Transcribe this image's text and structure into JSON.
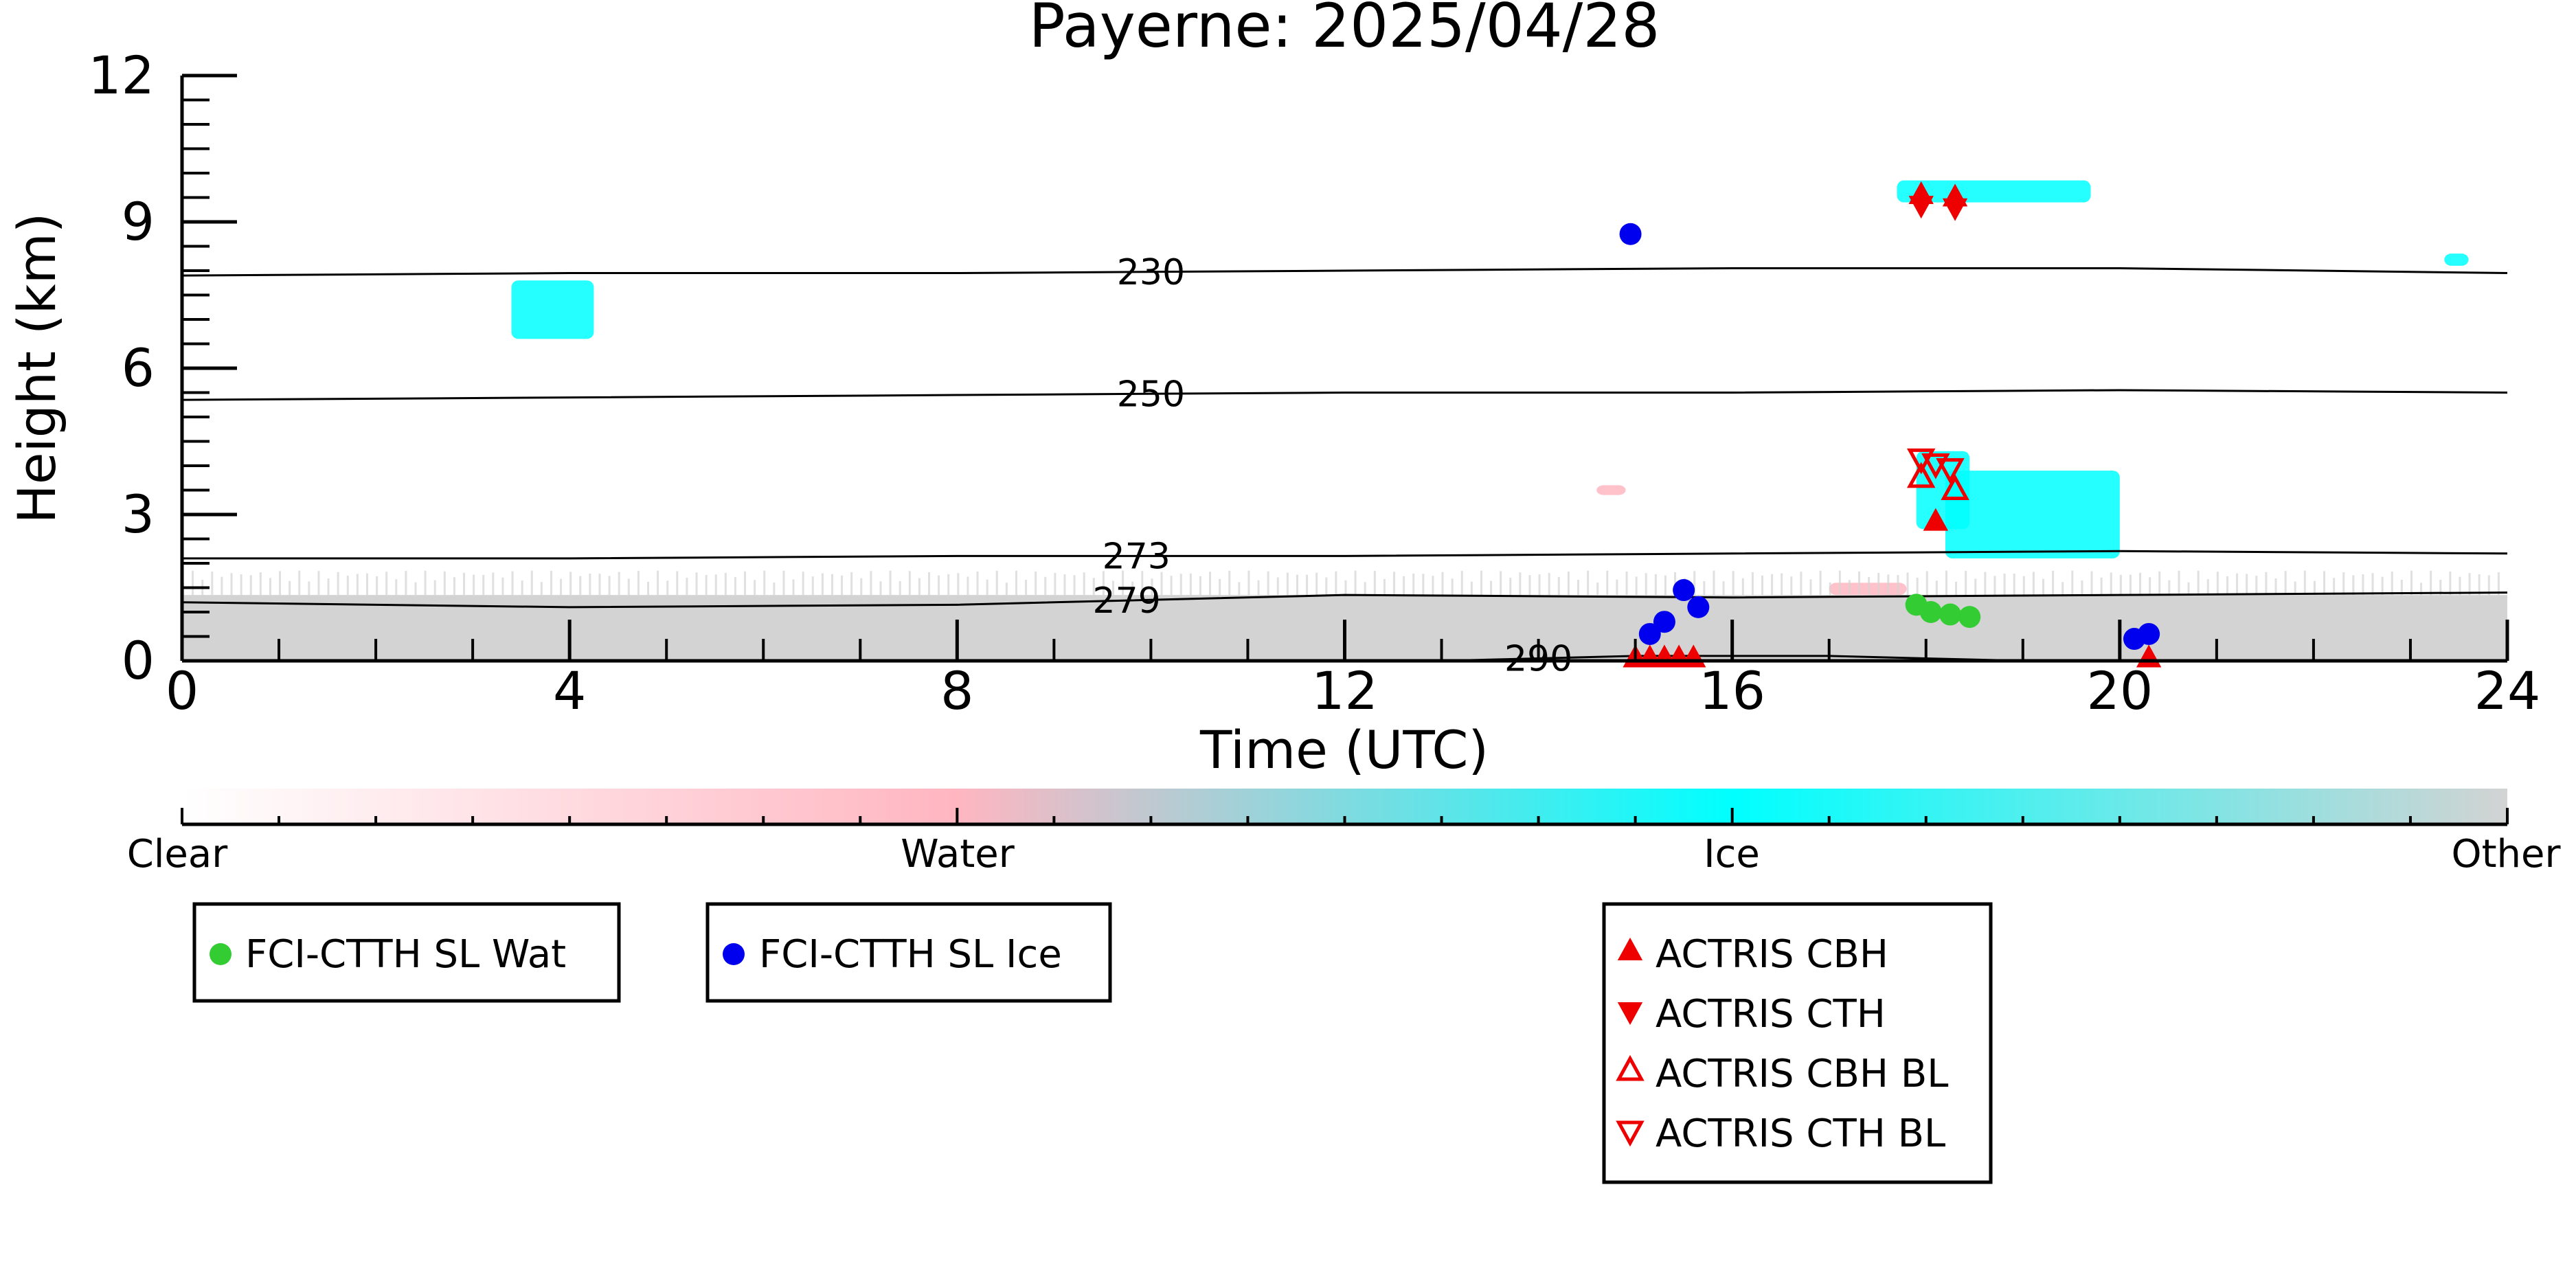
{
  "chart_data": {
    "type": "scatter",
    "title": "Payerne: 2025/04/28",
    "xlabel": "Time (UTC)",
    "ylabel": "Height (km)",
    "xlim": [
      0,
      24
    ],
    "ylim": [
      0,
      12
    ],
    "x_ticks": [
      0,
      4,
      8,
      12,
      16,
      20,
      24
    ],
    "x_tick_labels": [
      "0",
      "4",
      "8",
      "12",
      "16",
      "20",
      "24"
    ],
    "y_ticks": [
      0,
      3,
      6,
      9,
      12
    ],
    "y_tick_labels": [
      "0",
      "3",
      "6",
      "9",
      "12"
    ],
    "grid": false,
    "colorbar": {
      "labels": [
        "Clear",
        "Water",
        "Ice",
        "Other"
      ],
      "colors": {
        "clear": "#ffffff",
        "water": "#ffb6c1",
        "ice": "#00ffff",
        "other": "#d3d3d3"
      }
    },
    "contours": [
      {
        "label": "230",
        "x": [
          0,
          4,
          8,
          12,
          16,
          20,
          24
        ],
        "y": [
          7.9,
          7.95,
          7.95,
          8.0,
          8.05,
          8.05,
          7.95
        ],
        "label_x": 10.0
      },
      {
        "label": "250",
        "x": [
          0,
          4,
          8,
          12,
          16,
          20,
          24
        ],
        "y": [
          5.35,
          5.4,
          5.45,
          5.5,
          5.5,
          5.55,
          5.5
        ],
        "label_x": 10.0
      },
      {
        "label": "273",
        "x": [
          0,
          4,
          8,
          12,
          16,
          20,
          24
        ],
        "y": [
          2.1,
          2.1,
          2.15,
          2.15,
          2.2,
          2.25,
          2.2
        ],
        "label_x": 9.85
      },
      {
        "label": "279",
        "x": [
          0,
          4,
          8,
          12,
          16,
          20,
          24
        ],
        "y": [
          1.2,
          1.1,
          1.15,
          1.35,
          1.3,
          1.35,
          1.4
        ],
        "label_x": 9.75
      },
      {
        "label": "290",
        "x": [
          13,
          14,
          15,
          16,
          17,
          18,
          19
        ],
        "y": [
          0.0,
          0.05,
          0.1,
          0.1,
          0.1,
          0.05,
          0.0
        ],
        "label_x": 14.0
      }
    ],
    "series": [
      {
        "name": "FCI-CTTH SL Wat",
        "marker": "circle",
        "color": "#33cc33",
        "points": [
          [
            17.9,
            1.15
          ],
          [
            18.05,
            1.0
          ],
          [
            18.25,
            0.95
          ],
          [
            18.45,
            0.9
          ]
        ]
      },
      {
        "name": "FCI-CTTH SL Ice",
        "marker": "circle",
        "color": "#0000ee",
        "points": [
          [
            14.95,
            8.75
          ],
          [
            15.15,
            0.55
          ],
          [
            15.3,
            0.8
          ],
          [
            15.5,
            1.45
          ],
          [
            15.65,
            1.1
          ],
          [
            20.15,
            0.45
          ],
          [
            20.3,
            0.55
          ]
        ]
      },
      {
        "name": "ACTRIS CBH",
        "marker": "triangle-up",
        "color": "#ee0000",
        "points": [
          [
            17.95,
            9.55
          ],
          [
            18.3,
            9.5
          ],
          [
            18.1,
            2.85
          ],
          [
            15.0,
            0.05
          ],
          [
            15.15,
            0.05
          ],
          [
            15.3,
            0.05
          ],
          [
            15.45,
            0.05
          ],
          [
            15.6,
            0.05
          ],
          [
            20.3,
            0.05
          ]
        ]
      },
      {
        "name": "ACTRIS CTH",
        "marker": "triangle-down",
        "color": "#ee0000",
        "points": [
          [
            17.95,
            9.35
          ],
          [
            18.3,
            9.3
          ]
        ]
      },
      {
        "name": "ACTRIS CBH BL",
        "marker": "triangle-up-open",
        "color": "#ee0000",
        "points": [
          [
            17.95,
            3.75
          ],
          [
            18.3,
            3.5
          ]
        ]
      },
      {
        "name": "ACTRIS CTH BL",
        "marker": "triangle-down-open",
        "color": "#ee0000",
        "points": [
          [
            17.95,
            4.15
          ],
          [
            18.1,
            4.05
          ],
          [
            18.25,
            3.95
          ]
        ]
      }
    ],
    "regions": {
      "ice": [
        {
          "x": [
            3.4,
            4.25
          ],
          "y": [
            6.6,
            7.8
          ]
        },
        {
          "x": [
            17.7,
            19.7
          ],
          "y": [
            9.4,
            9.85
          ]
        },
        {
          "x": [
            23.35,
            23.6
          ],
          "y": [
            8.1,
            8.35
          ]
        },
        {
          "x": [
            17.9,
            18.45
          ],
          "y": [
            2.7,
            4.3
          ]
        },
        {
          "x": [
            18.2,
            20.0
          ],
          "y": [
            2.1,
            3.9
          ]
        }
      ],
      "water": [
        {
          "x": [
            17.0,
            17.8
          ],
          "y": [
            1.35,
            1.6
          ]
        },
        {
          "x": [
            14.6,
            14.9
          ],
          "y": [
            3.4,
            3.6
          ]
        }
      ],
      "other": [
        {
          "x": [
            0,
            24
          ],
          "y": [
            0,
            1.35
          ]
        }
      ]
    },
    "legends": [
      {
        "entries": [
          {
            "label": "FCI-CTTH SL Wat",
            "marker": "circle",
            "color": "#33cc33"
          }
        ]
      },
      {
        "entries": [
          {
            "label": "FCI-CTTH SL Ice",
            "marker": "circle",
            "color": "#0000ee"
          }
        ]
      },
      {
        "entries": [
          {
            "label": "ACTRIS CBH",
            "marker": "triangle-up",
            "color": "#ee0000"
          },
          {
            "label": "ACTRIS CTH",
            "marker": "triangle-down",
            "color": "#ee0000"
          },
          {
            "label": "ACTRIS CBH BL",
            "marker": "triangle-up-open",
            "color": "#ee0000"
          },
          {
            "label": "ACTRIS CTH BL",
            "marker": "triangle-down-open",
            "color": "#ee0000"
          }
        ]
      }
    ]
  }
}
